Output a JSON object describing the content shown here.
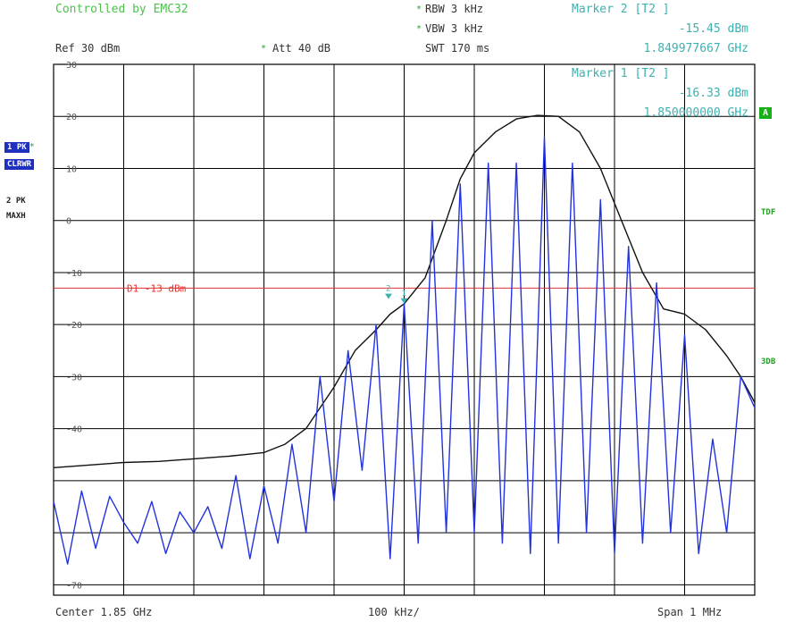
{
  "header": {
    "controlled": "Controlled by EMC32",
    "rbw": "RBW  3 kHz",
    "vbw": "VBW  3 kHz",
    "swt": "SWT 170 ms",
    "ref": "Ref  30 dBm",
    "att": "Att  40 dB",
    "marker2_title": "Marker 2 [T2 ]",
    "marker2_level": "-15.45 dBm",
    "marker2_freq": "1.849977667 GHz",
    "marker1_title": "Marker 1 [T2 ]",
    "marker1_level": "-16.33 dBm",
    "marker1_freq": "1.850000000 GHz"
  },
  "side": {
    "trace1": "1 PK",
    "trace1_mode": "CLRWR",
    "trace2": "2 PK",
    "trace2_mode": "MAXH",
    "a_badge": "A",
    "tdf": "TDF",
    "db3": "3DB"
  },
  "footer": {
    "center": "Center  1.85 GHz",
    "div": "100 kHz/",
    "span": "Span  1 MHz"
  },
  "colors": {
    "grid": "#000000",
    "trace_maxhold": "#111111",
    "trace_clrwr": "#2233dd",
    "display_line": "#e53030",
    "marker": "#3fb0b0"
  },
  "chart_data": {
    "type": "line",
    "xlabel": "",
    "ylabel": "",
    "x_unit": "MHz",
    "y_unit": "dBm",
    "xlim": [
      1849.5,
      1850.5
    ],
    "ylim": [
      -72,
      30
    ],
    "y_ticks": [
      30,
      20,
      10,
      0,
      -10,
      -20,
      -30,
      -40,
      -50,
      -60,
      -70
    ],
    "y_tick_labels": [
      "30",
      "20",
      "10",
      "0",
      "-10",
      "-20",
      "-30",
      "-40",
      "",
      "",
      "-70"
    ],
    "grid": true,
    "display_line": {
      "label": "D1 -13 dBm",
      "value": -13
    },
    "markers": [
      {
        "name": "1",
        "x": 1850.0,
        "y": -16.33
      },
      {
        "name": "2",
        "x": 1849.977667,
        "y": -15.45
      }
    ],
    "series": [
      {
        "x": [
          1849.5,
          1849.55,
          1849.6,
          1849.65,
          1849.7,
          1849.75,
          1849.8,
          1849.83,
          1849.86,
          1849.9,
          1849.93,
          1849.96,
          1849.98,
          1850.0,
          1850.03,
          1850.06,
          1850.08,
          1850.1,
          1850.13,
          1850.16,
          1850.19,
          1850.22,
          1850.25,
          1850.28,
          1850.31,
          1850.34,
          1850.37,
          1850.4,
          1850.43,
          1850.46,
          1850.48,
          1850.5
        ],
        "values": [
          -47.5,
          -47,
          -46.5,
          -46.3,
          -45.8,
          -45.3,
          -44.6,
          -43,
          -40,
          -32,
          -25,
          -21,
          -18,
          -16,
          -11,
          0,
          8,
          13,
          17,
          19.5,
          20.2,
          20,
          17,
          10,
          0,
          -10,
          -17,
          -18,
          -21,
          -26,
          -30,
          -35
        ]
      },
      {
        "x": [
          1849.5,
          1849.52,
          1849.54,
          1849.56,
          1849.58,
          1849.6,
          1849.62,
          1849.64,
          1849.66,
          1849.68,
          1849.7,
          1849.72,
          1849.74,
          1849.76,
          1849.78,
          1849.8,
          1849.82,
          1849.84,
          1849.86,
          1849.88,
          1849.9,
          1849.92,
          1849.94,
          1849.96,
          1849.98,
          1850.0,
          1850.02,
          1850.04,
          1850.06,
          1850.08,
          1850.1,
          1850.12,
          1850.14,
          1850.16,
          1850.18,
          1850.2,
          1850.22,
          1850.24,
          1850.26,
          1850.28,
          1850.3,
          1850.32,
          1850.34,
          1850.36,
          1850.38,
          1850.4,
          1850.42,
          1850.44,
          1850.46,
          1850.48,
          1850.5
        ],
        "values": [
          -54,
          -66,
          -52,
          -63,
          -53,
          -58,
          -62,
          -54,
          -64,
          -56,
          -60,
          -55,
          -63,
          -49,
          -65,
          -51,
          -62,
          -43,
          -60,
          -30,
          -54,
          -25,
          -48,
          -20,
          -65,
          -16,
          -62,
          0,
          -60,
          7,
          -60,
          11,
          -62,
          11,
          -64,
          16,
          -62,
          11,
          -60,
          4,
          -64,
          -5,
          -62,
          -12,
          -60,
          -22,
          -64,
          -42,
          -60,
          -30,
          -36
        ]
      }
    ]
  }
}
